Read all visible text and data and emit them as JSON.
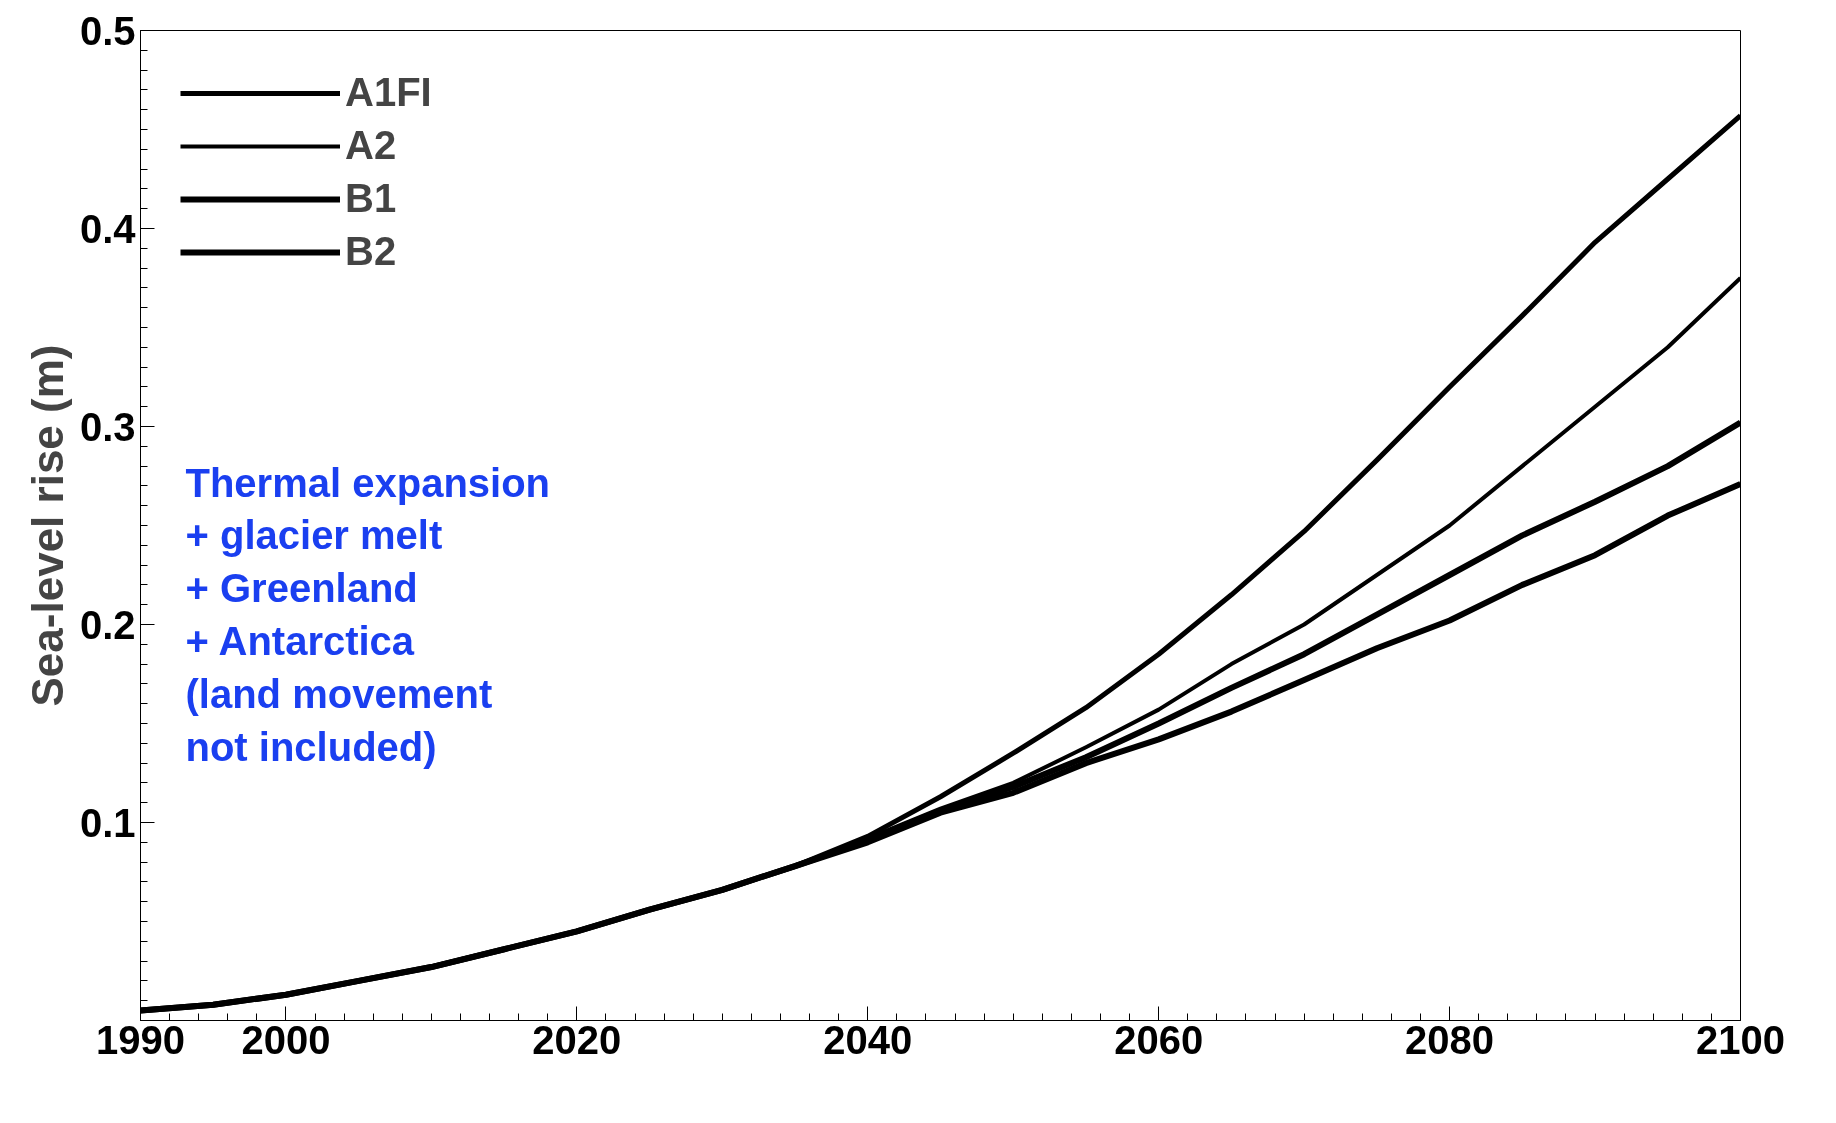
{
  "chart_data": {
    "type": "line",
    "ylabel": "Sea-level rise (m)",
    "x": [
      1990,
      1995,
      2000,
      2005,
      2010,
      2015,
      2020,
      2025,
      2030,
      2035,
      2040,
      2045,
      2050,
      2055,
      2060,
      2065,
      2070,
      2075,
      2080,
      2085,
      2090,
      2095,
      2100
    ],
    "series": [
      {
        "name": "A1FI",
        "color": "#000000",
        "values": [
          0.005,
          0.008,
          0.013,
          0.02,
          0.027,
          0.036,
          0.045,
          0.056,
          0.066,
          0.078,
          0.093,
          0.113,
          0.135,
          0.158,
          0.185,
          0.215,
          0.247,
          0.283,
          0.32,
          0.356,
          0.393,
          0.425,
          0.457
        ]
      },
      {
        "name": "A2",
        "color": "#000000",
        "values": [
          0.005,
          0.008,
          0.013,
          0.02,
          0.027,
          0.036,
          0.045,
          0.056,
          0.066,
          0.078,
          0.092,
          0.107,
          0.12,
          0.138,
          0.157,
          0.18,
          0.2,
          0.225,
          0.25,
          0.28,
          0.31,
          0.34,
          0.375
        ]
      },
      {
        "name": "B1",
        "color": "#000000",
        "values": [
          0.005,
          0.008,
          0.013,
          0.02,
          0.027,
          0.036,
          0.045,
          0.056,
          0.066,
          0.078,
          0.091,
          0.106,
          0.118,
          0.133,
          0.15,
          0.168,
          0.185,
          0.205,
          0.225,
          0.245,
          0.262,
          0.28,
          0.302
        ]
      },
      {
        "name": "B2",
        "color": "#000000",
        "values": [
          0.005,
          0.008,
          0.013,
          0.02,
          0.027,
          0.036,
          0.045,
          0.056,
          0.066,
          0.078,
          0.09,
          0.105,
          0.115,
          0.13,
          0.142,
          0.156,
          0.172,
          0.188,
          0.202,
          0.22,
          0.235,
          0.255,
          0.271
        ]
      }
    ],
    "xlim": [
      1990,
      2100
    ],
    "xticks": [
      1990,
      2000,
      2020,
      2040,
      2060,
      2080,
      2100
    ],
    "ylim": [
      0,
      0.5
    ],
    "yticks": [
      0.1,
      0.2,
      0.3,
      0.4,
      0.5
    ],
    "legend": "top left",
    "grid": false,
    "marker": "none",
    "line_style": "solid",
    "annotations": [
      "Thermal expansion\n+ glacier melt\n+ Greenland\n+ Antarctica\n(land movement\n  not included)"
    ]
  }
}
